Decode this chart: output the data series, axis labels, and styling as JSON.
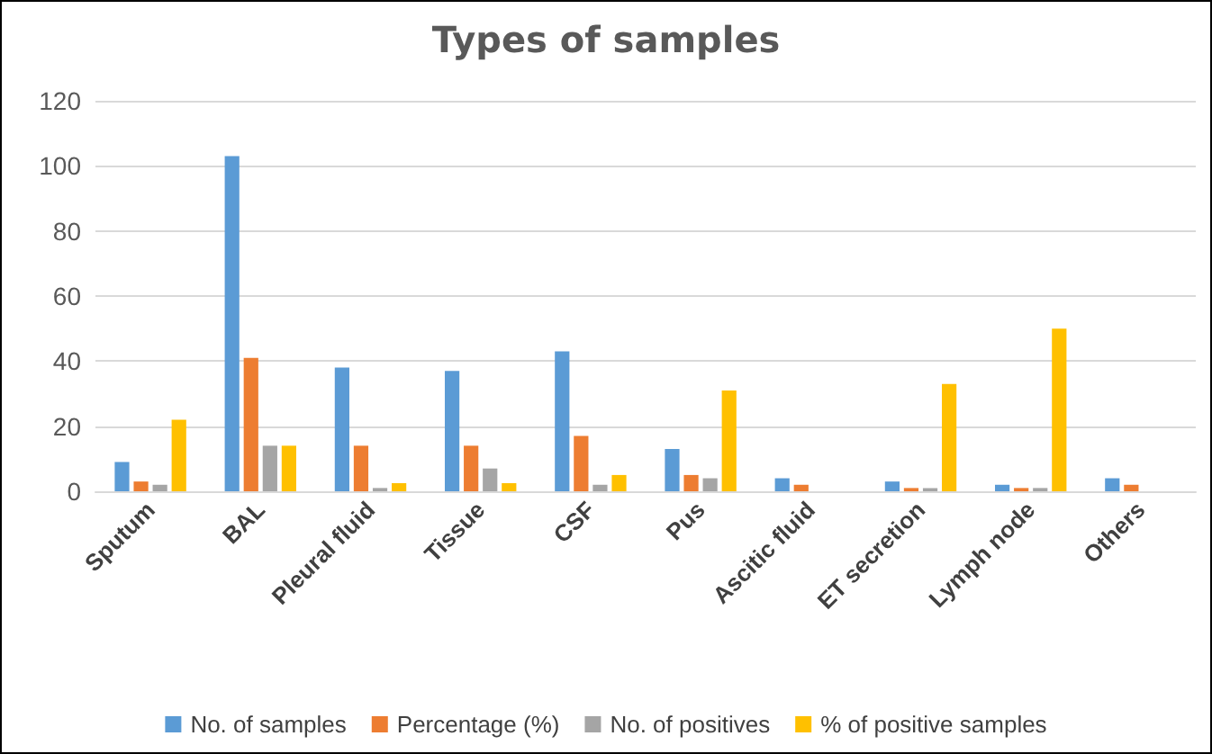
{
  "chart_data": {
    "type": "bar",
    "title": "Types of samples",
    "categories": [
      "Sputum",
      "BAL",
      "Pleural fluid",
      "Tissue",
      "CSF",
      "Pus",
      "Ascitic fluid",
      "ET secretion",
      "Lymph node",
      "Others"
    ],
    "series": [
      {
        "name": "No. of samples",
        "color": "#5b9bd5",
        "values": [
          9,
          103,
          38,
          37,
          43,
          13,
          4,
          3,
          2,
          4
        ]
      },
      {
        "name": "Percentage (%)",
        "color": "#ed7d31",
        "values": [
          3,
          41,
          14,
          14,
          17,
          5,
          2,
          1,
          1,
          2
        ]
      },
      {
        "name": "No. of positives",
        "color": "#a5a5a5",
        "values": [
          2,
          14,
          1,
          7,
          2,
          4,
          0,
          1,
          1,
          0
        ]
      },
      {
        "name": "% of positive samples",
        "color": "#ffc000",
        "values": [
          22,
          14,
          2.5,
          2.5,
          5,
          31,
          0,
          33,
          50,
          0
        ]
      }
    ],
    "ylim": [
      0,
      120
    ],
    "yticks": [
      0,
      20,
      40,
      60,
      80,
      100,
      120
    ],
    "grid": "y",
    "legend": "bottom"
  }
}
